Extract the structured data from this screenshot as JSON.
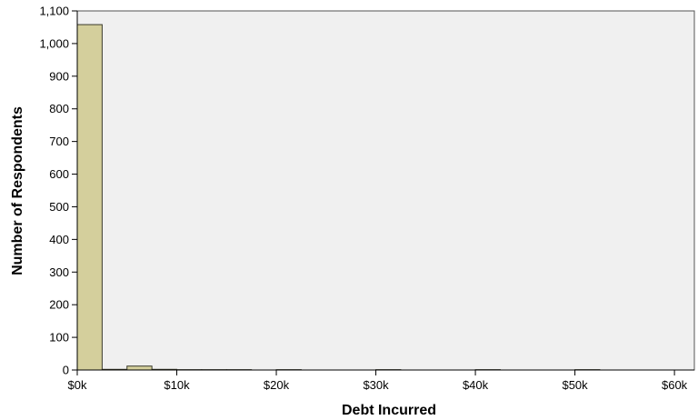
{
  "chart_data": {
    "type": "bar",
    "title": "",
    "xlabel": "Debt Incurred",
    "ylabel": "Number of Respondents",
    "xlim": [
      0,
      62
    ],
    "ylim": [
      0,
      1100
    ],
    "y_ticks": [
      0,
      100,
      200,
      300,
      400,
      500,
      600,
      700,
      800,
      900,
      1000,
      1100
    ],
    "y_tick_labels": [
      "0",
      "100",
      "200",
      "300",
      "400",
      "500",
      "600",
      "700",
      "800",
      "900",
      "1,000",
      "1,100"
    ],
    "x_ticks": [
      0,
      10,
      20,
      30,
      40,
      50,
      60
    ],
    "x_tick_labels": [
      "$0k",
      "$10k",
      "$20k",
      "$30k",
      "$40k",
      "$50k",
      "$60k"
    ],
    "x_unit": "thousand dollars",
    "bin_width": 2.5,
    "bins": [
      {
        "start": 0,
        "count": 1058
      },
      {
        "start": 2.5,
        "count": 2
      },
      {
        "start": 5,
        "count": 12
      },
      {
        "start": 7.5,
        "count": 2
      },
      {
        "start": 10,
        "count": 1
      },
      {
        "start": 12.5,
        "count": 1
      },
      {
        "start": 15,
        "count": 1
      },
      {
        "start": 20,
        "count": 1
      },
      {
        "start": 30,
        "count": 1
      },
      {
        "start": 40,
        "count": 1
      },
      {
        "start": 50,
        "count": 1
      }
    ],
    "colors": {
      "bar_fill": "#d4cf9c",
      "bar_stroke": "#3a3a2a",
      "plot_background": "#f0f0f0",
      "frame": "#555555"
    },
    "grid": false,
    "legend": false
  }
}
